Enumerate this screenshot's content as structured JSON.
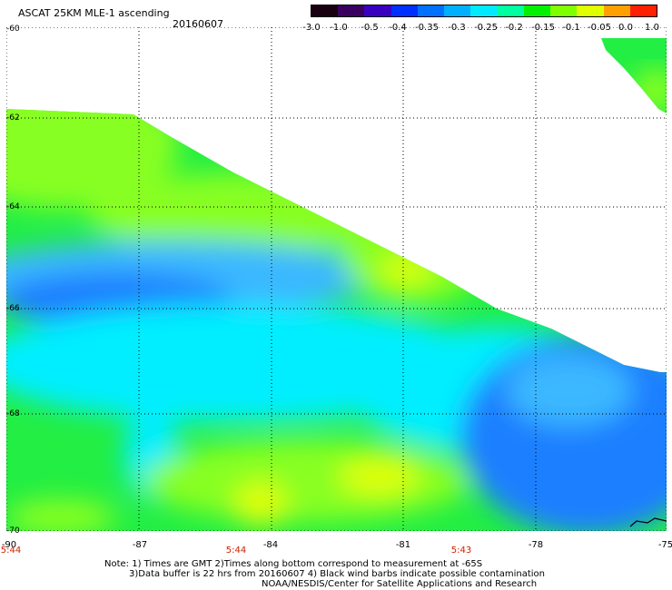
{
  "header": {
    "title": "ASCAT 25KM MLE-1 ascending",
    "date": "20160607"
  },
  "colorbar": {
    "labels": [
      "-3.0",
      "-1.0",
      "-0.5",
      "-0.4",
      "-0.35",
      "-0.3",
      "-0.25",
      "-0.2",
      "-0.15",
      "-0.1",
      "-0.05",
      "0.0",
      "1.0"
    ],
    "colors": [
      "#180010",
      "#3a0060",
      "#3a00c0",
      "#0030ff",
      "#0070ff",
      "#00b0ff",
      "#00eaff",
      "#00ffa0",
      "#00f000",
      "#80ff00",
      "#e0ff00",
      "#ffa000",
      "#ff2000"
    ]
  },
  "map": {
    "lat_labels": [
      "-60",
      "-62",
      "-64",
      "-66",
      "-68",
      "-70"
    ],
    "lon_labels": [
      "-90",
      "-87",
      "-84",
      "-81",
      "-78",
      "-75"
    ],
    "time_labels": [
      "5:44",
      "5:44",
      "5:43"
    ],
    "colors": {
      "blue": "#1a7fff",
      "light_blue": "#3ab8ff",
      "cyan": "#00eeff",
      "aqua": "#00ffcc",
      "green": "#22ee44",
      "lime": "#88ff22",
      "yellow": "#ddff11"
    }
  },
  "notes": {
    "line1": "Note: 1) Times are GMT 2)Times along bottom correspond to measurement at -65S",
    "line2": "3)Data buffer is 22 hrs from 20160607 4) Black wind barbs indicate possible contamination",
    "line3": "NOAA/NESDIS/Center for Satellite Applications and Research"
  }
}
